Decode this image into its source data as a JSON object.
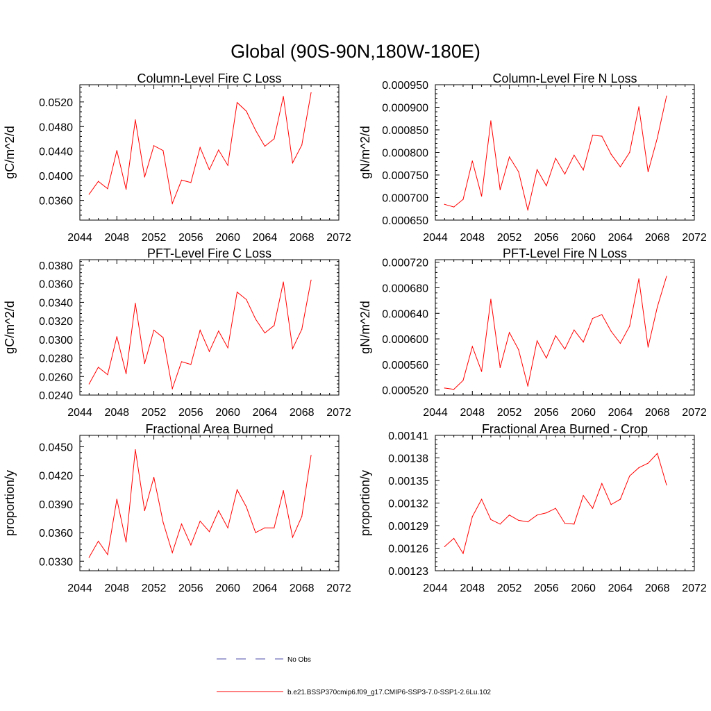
{
  "figure_title": "Global (90S-90N,180W-180E)",
  "legend": {
    "items": [
      {
        "label": "No Obs",
        "color": "#4a4aa8",
        "style": "dashed"
      },
      {
        "label": "b.e21.BSSP370cmip6.f09_g17.CMIP6-SSP3-7.0-SSP1-2.6Lu.102",
        "color": "#ff0000",
        "style": "solid"
      }
    ]
  },
  "chart_data": [
    {
      "type": "line",
      "title": "Column-Level Fire C Loss",
      "ylabel": "gC/m^2/d",
      "xlim": [
        2044,
        2072
      ],
      "ylim": [
        0.0328,
        0.0548
      ],
      "xticks": [
        "2044",
        "2048",
        "2052",
        "2056",
        "2060",
        "2064",
        "2068",
        "2072"
      ],
      "yticks": [
        "0.0360",
        "0.0400",
        "0.0440",
        "0.0480",
        "0.0520"
      ],
      "series": [
        {
          "color": "#ff0000",
          "x": [
            2045,
            2046,
            2047,
            2048,
            2049,
            2050,
            2051,
            2052,
            2053,
            2054,
            2055,
            2056,
            2057,
            2058,
            2059,
            2060,
            2061,
            2062,
            2063,
            2064,
            2065,
            2066,
            2067,
            2068,
            2069
          ],
          "values": [
            0.037,
            0.0391,
            0.0379,
            0.0441,
            0.0378,
            0.0491,
            0.0398,
            0.0449,
            0.0441,
            0.0355,
            0.0393,
            0.0389,
            0.0446,
            0.041,
            0.0442,
            0.0417,
            0.0519,
            0.0505,
            0.0474,
            0.0448,
            0.046,
            0.0529,
            0.0421,
            0.045,
            0.0535
          ]
        }
      ]
    },
    {
      "type": "line",
      "title": "Column-Level Fire N Loss",
      "ylabel": "gN/m^2/d",
      "xlim": [
        2044,
        2072
      ],
      "ylim": [
        0.00065,
        0.00095
      ],
      "xticks": [
        "2044",
        "2048",
        "2052",
        "2056",
        "2060",
        "2064",
        "2068",
        "2072"
      ],
      "yticks": [
        "0.000650",
        "0.000700",
        "0.000750",
        "0.000800",
        "0.000850",
        "0.000900",
        "0.000950"
      ],
      "series": [
        {
          "color": "#ff0000",
          "x": [
            2045,
            2046,
            2047,
            2048,
            2049,
            2050,
            2051,
            2052,
            2053,
            2054,
            2055,
            2056,
            2057,
            2058,
            2059,
            2060,
            2061,
            2062,
            2063,
            2064,
            2065,
            2066,
            2067,
            2068,
            2069
          ],
          "values": [
            0.000685,
            0.000679,
            0.000696,
            0.000781,
            0.000703,
            0.00087,
            0.000717,
            0.00079,
            0.000757,
            0.000672,
            0.000762,
            0.000726,
            0.000787,
            0.000752,
            0.000794,
            0.000761,
            0.000838,
            0.000836,
            0.000796,
            0.000768,
            0.0008,
            0.000901,
            0.000757,
            0.000832,
            0.000925
          ]
        }
      ]
    },
    {
      "type": "line",
      "title": "PFT-Level Fire C Loss",
      "ylabel": "gC/m^2/d",
      "xlim": [
        2044,
        2072
      ],
      "ylim": [
        0.024,
        0.0386
      ],
      "xticks": [
        "2044",
        "2048",
        "2052",
        "2056",
        "2060",
        "2064",
        "2068",
        "2072"
      ],
      "yticks": [
        "0.0240",
        "0.0260",
        "0.0280",
        "0.0300",
        "0.0320",
        "0.0340",
        "0.0360",
        "0.0380"
      ],
      "series": [
        {
          "color": "#ff0000",
          "x": [
            2045,
            2046,
            2047,
            2048,
            2049,
            2050,
            2051,
            2052,
            2053,
            2054,
            2055,
            2056,
            2057,
            2058,
            2059,
            2060,
            2061,
            2062,
            2063,
            2064,
            2065,
            2066,
            2067,
            2068,
            2069
          ],
          "values": [
            0.0252,
            0.027,
            0.0262,
            0.0303,
            0.0263,
            0.0339,
            0.0274,
            0.031,
            0.0302,
            0.0247,
            0.0276,
            0.0273,
            0.031,
            0.0287,
            0.0309,
            0.0291,
            0.0351,
            0.0343,
            0.0322,
            0.0307,
            0.0315,
            0.0362,
            0.029,
            0.0311,
            0.0364
          ]
        }
      ]
    },
    {
      "type": "line",
      "title": "PFT-Level Fire N Loss",
      "ylabel": "gN/m^2/d",
      "xlim": [
        2044,
        2072
      ],
      "ylim": [
        0.000512,
        0.000724
      ],
      "xticks": [
        "2044",
        "2048",
        "2052",
        "2056",
        "2060",
        "2064",
        "2068",
        "2072"
      ],
      "yticks": [
        "0.000520",
        "0.000560",
        "0.000600",
        "0.000640",
        "0.000680",
        "0.000720"
      ],
      "series": [
        {
          "color": "#ff0000",
          "x": [
            2045,
            2046,
            2047,
            2048,
            2049,
            2050,
            2051,
            2052,
            2053,
            2054,
            2055,
            2056,
            2057,
            2058,
            2059,
            2060,
            2061,
            2062,
            2063,
            2064,
            2065,
            2066,
            2067,
            2068,
            2069
          ],
          "values": [
            0.000523,
            0.000521,
            0.000535,
            0.000588,
            0.000549,
            0.000662,
            0.000555,
            0.00061,
            0.000583,
            0.000526,
            0.000597,
            0.00057,
            0.000605,
            0.000584,
            0.000614,
            0.000595,
            0.000632,
            0.000638,
            0.000612,
            0.000593,
            0.00062,
            0.000694,
            0.000587,
            0.00065,
            0.000698
          ]
        }
      ]
    },
    {
      "type": "line",
      "title": "Fractional Area Burned",
      "ylabel": "proportion/y",
      "xlim": [
        2044,
        2072
      ],
      "ylim": [
        0.032,
        0.0462
      ],
      "xticks": [
        "2044",
        "2048",
        "2052",
        "2056",
        "2060",
        "2064",
        "2068",
        "2072"
      ],
      "yticks": [
        "0.0330",
        "0.0360",
        "0.0390",
        "0.0420",
        "0.0450"
      ],
      "series": [
        {
          "color": "#ff0000",
          "x": [
            2045,
            2046,
            2047,
            2048,
            2049,
            2050,
            2051,
            2052,
            2053,
            2054,
            2055,
            2056,
            2057,
            2058,
            2059,
            2060,
            2061,
            2062,
            2063,
            2064,
            2065,
            2066,
            2067,
            2068,
            2069
          ],
          "values": [
            0.0334,
            0.0351,
            0.0337,
            0.0395,
            0.035,
            0.0447,
            0.0383,
            0.0418,
            0.0371,
            0.0339,
            0.0369,
            0.0347,
            0.0372,
            0.0361,
            0.0383,
            0.0365,
            0.0405,
            0.0387,
            0.036,
            0.0365,
            0.0365,
            0.0404,
            0.0355,
            0.0377,
            0.0441
          ]
        }
      ]
    },
    {
      "type": "line",
      "title": "Fractional Area Burned - Crop",
      "ylabel": "proportion/y",
      "xlim": [
        2044,
        2072
      ],
      "ylim": [
        0.00123,
        0.00141
      ],
      "xticks": [
        "2044",
        "2048",
        "2052",
        "2056",
        "2060",
        "2064",
        "2068",
        "2072"
      ],
      "yticks": [
        "0.00123",
        "0.00126",
        "0.00129",
        "0.00132",
        "0.00135",
        "0.00138",
        "0.00141"
      ],
      "series": [
        {
          "color": "#ff0000",
          "x": [
            2045,
            2046,
            2047,
            2048,
            2049,
            2050,
            2051,
            2052,
            2053,
            2054,
            2055,
            2056,
            2057,
            2058,
            2059,
            2060,
            2061,
            2062,
            2063,
            2064,
            2065,
            2066,
            2067,
            2068,
            2069
          ],
          "values": [
            0.001262,
            0.001273,
            0.001253,
            0.001302,
            0.001325,
            0.001298,
            0.001292,
            0.001304,
            0.001297,
            0.001295,
            0.001304,
            0.001307,
            0.001313,
            0.001293,
            0.001292,
            0.00133,
            0.001313,
            0.001346,
            0.001318,
            0.001325,
            0.001356,
            0.001367,
            0.001373,
            0.001386,
            0.001344
          ]
        }
      ]
    }
  ]
}
